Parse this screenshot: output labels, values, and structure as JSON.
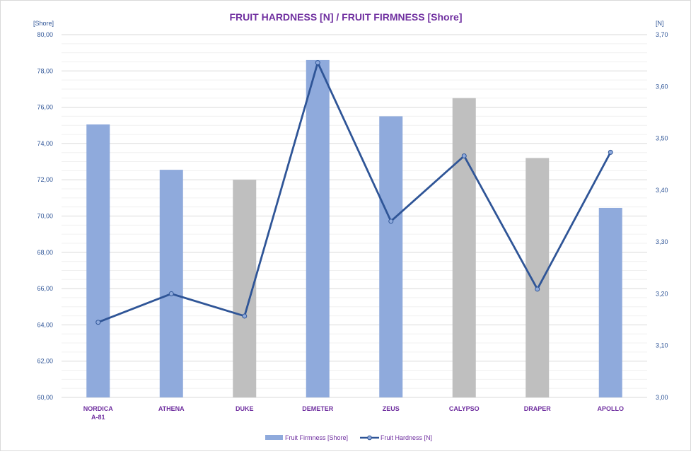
{
  "chart_data": {
    "type": "bar",
    "title": "FRUIT HARDNESS [N] / FRUIT FIRMNESS [Shore]",
    "y_left_unit": "[Shore]",
    "y_right_unit": "[N]",
    "y_left_lim": [
      60,
      80
    ],
    "y_left_ticks": [
      "60,00",
      "62,00",
      "64,00",
      "66,00",
      "68,00",
      "70,00",
      "72,00",
      "74,00",
      "76,00",
      "78,00",
      "80,00"
    ],
    "y_right_lim": [
      3.0,
      3.7
    ],
    "y_right_ticks": [
      "3,00",
      "3,10",
      "3,20",
      "3,30",
      "3,40",
      "3,50",
      "3,60",
      "3,70"
    ],
    "categories": [
      "NORDICA A-81",
      "ATHENA",
      "DUKE",
      "DEMETER",
      "ZEUS",
      "CALYPSO",
      "DRAPER",
      "APOLLO"
    ],
    "category_lines": [
      [
        "NORDICA",
        "A-81"
      ],
      [
        "ATHENA"
      ],
      [
        "DUKE"
      ],
      [
        "DEMETER"
      ],
      [
        "ZEUS"
      ],
      [
        "CALYPSO"
      ],
      [
        "DRAPER"
      ],
      [
        "APOLLO"
      ]
    ],
    "series": [
      {
        "name": "Fruit Firmness [Shore]",
        "type": "bar",
        "axis": "left",
        "values": [
          75.05,
          72.55,
          72.0,
          78.6,
          75.5,
          76.5,
          73.2,
          70.45
        ],
        "colors": [
          "#8faadc",
          "#8faadc",
          "#bfbfbf",
          "#8faadc",
          "#8faadc",
          "#bfbfbf",
          "#bfbfbf",
          "#8faadc"
        ]
      },
      {
        "name": "Fruit Hardness [N]",
        "type": "line",
        "axis": "right",
        "values": [
          3.145,
          3.2,
          3.157,
          3.646,
          3.34,
          3.466,
          3.209,
          3.473
        ],
        "color": "#2f5597"
      }
    ],
    "grid": true,
    "minor_grid": true,
    "legend_position": "bottom"
  }
}
